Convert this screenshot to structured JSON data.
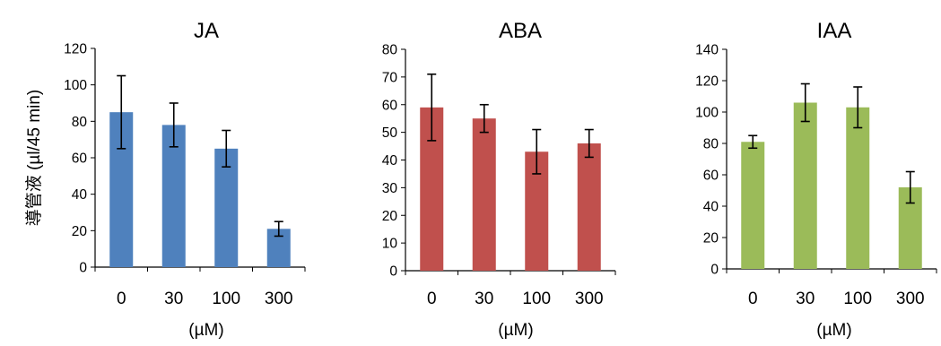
{
  "ylabel": "導管液 (µl/45 min)",
  "chart_data": [
    {
      "type": "bar",
      "title": "JA",
      "xlabel": "(µM)",
      "categories": [
        "0",
        "30",
        "100",
        "300"
      ],
      "values": [
        85,
        78,
        65,
        21
      ],
      "errors": [
        20,
        12,
        10,
        4
      ],
      "ylim": [
        0,
        120
      ],
      "yticks": [
        0,
        20,
        40,
        60,
        80,
        100,
        120
      ],
      "color": "#4f81bd",
      "grid": false,
      "legend": "none"
    },
    {
      "type": "bar",
      "title": "ABA",
      "xlabel": "(µM)",
      "categories": [
        "0",
        "30",
        "100",
        "300"
      ],
      "values": [
        59,
        55,
        43,
        46
      ],
      "errors": [
        12,
        5,
        8,
        5
      ],
      "ylim": [
        0,
        80
      ],
      "yticks": [
        0,
        10,
        20,
        30,
        40,
        50,
        60,
        70,
        80
      ],
      "color": "#c0504d",
      "grid": false,
      "legend": "none"
    },
    {
      "type": "bar",
      "title": "IAA",
      "xlabel": "(µM)",
      "categories": [
        "0",
        "30",
        "100",
        "300"
      ],
      "values": [
        81,
        106,
        103,
        52
      ],
      "errors": [
        4,
        12,
        13,
        10
      ],
      "ylim": [
        0,
        140
      ],
      "yticks": [
        0,
        20,
        40,
        60,
        80,
        100,
        120,
        140
      ],
      "color": "#9bbb59",
      "grid": false,
      "legend": "none"
    }
  ]
}
